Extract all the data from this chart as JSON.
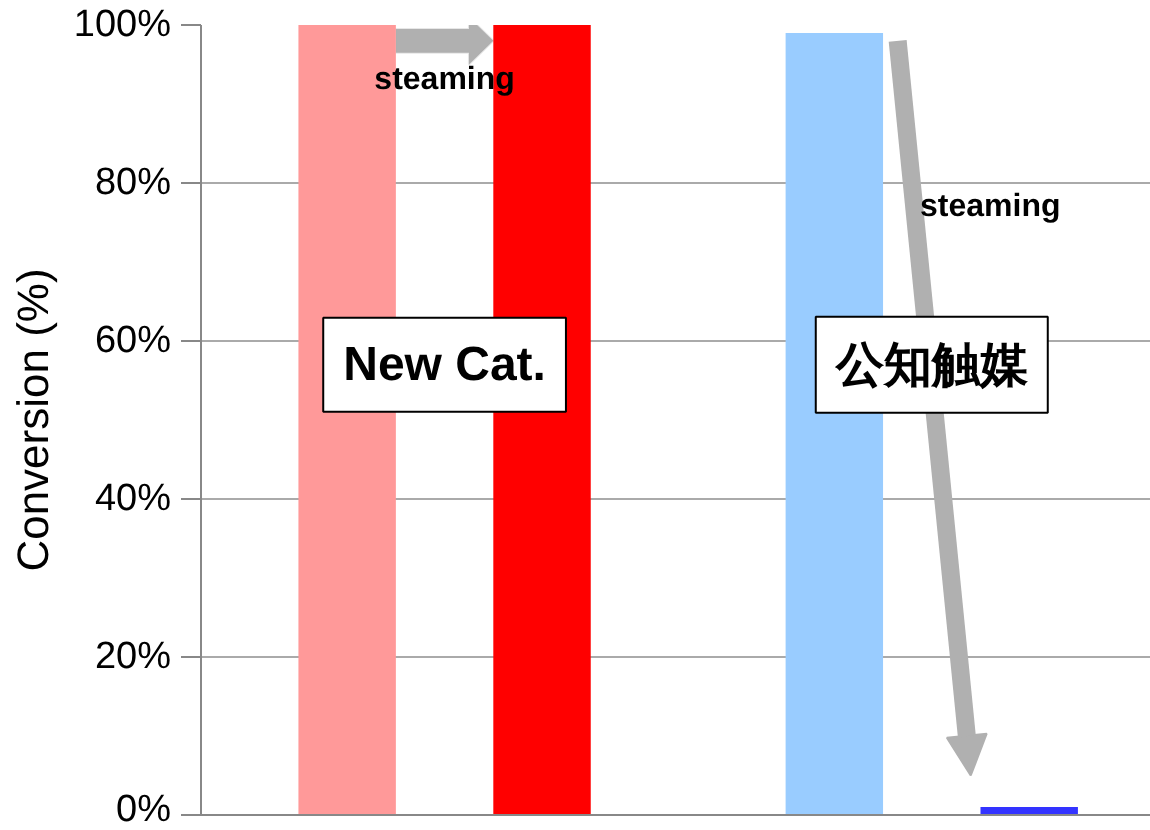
{
  "chart_data": {
    "type": "bar",
    "categories": [
      null,
      null
    ],
    "series": [
      {
        "colors": [
          "#ff9999",
          "#99ccff"
        ],
        "values": [
          100,
          99
        ]
      },
      {
        "colors": [
          "#ff0000",
          "#3333ff"
        ],
        "values": [
          100,
          1
        ]
      }
    ],
    "ylabel": "Conversion (%)",
    "ylim": [
      0,
      100
    ],
    "yticks": [
      {
        "value": 0,
        "label": "0%"
      },
      {
        "value": 20,
        "label": "20%"
      },
      {
        "value": 40,
        "label": "40%"
      },
      {
        "value": 60,
        "label": "60%"
      },
      {
        "value": 80,
        "label": "80%"
      },
      {
        "value": 100,
        "label": "100%"
      }
    ],
    "grid": "y",
    "annotations": [
      "steaming",
      "steaming",
      "New Cat.",
      "公知触媒"
    ]
  }
}
